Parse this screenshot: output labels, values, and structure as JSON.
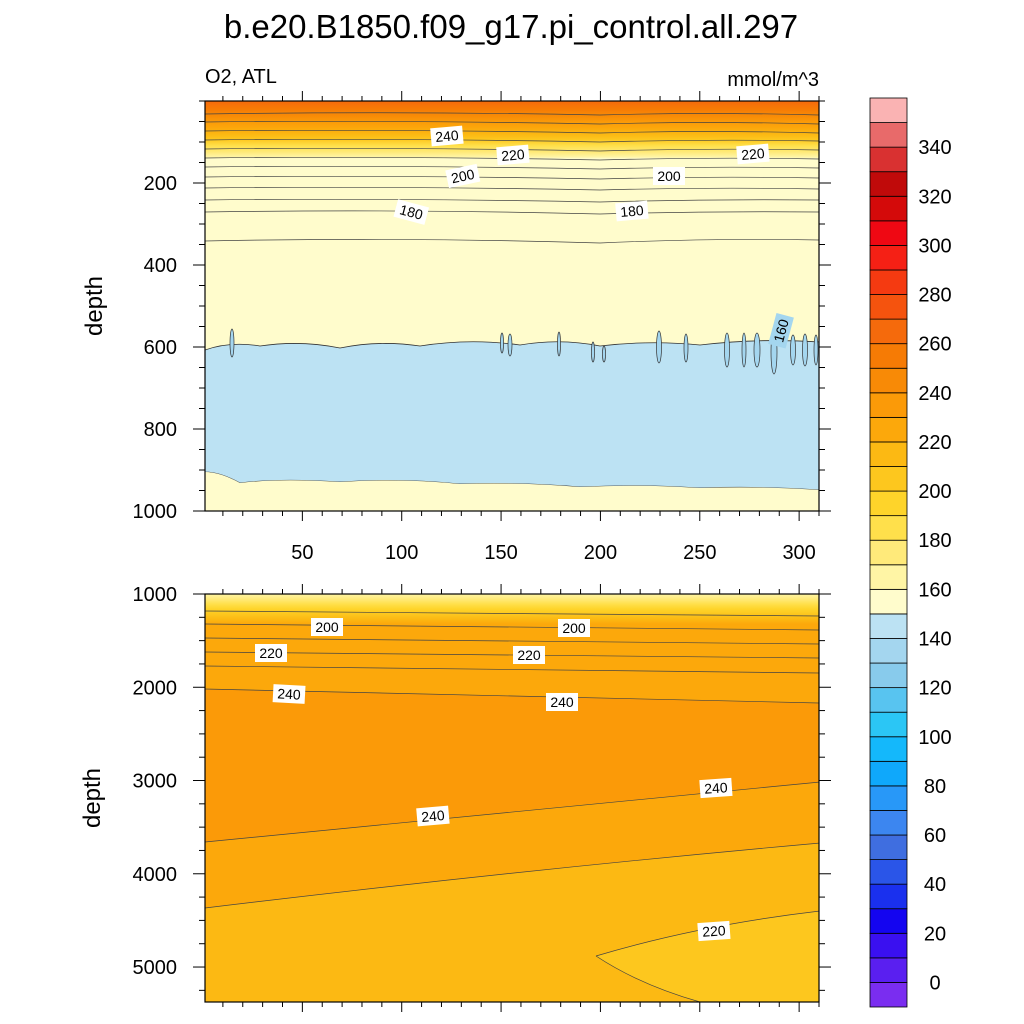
{
  "chart_data": {
    "type": "contour",
    "title": "b.e20.B1850.f09_g17.pi_control.all.297",
    "left_string": "O2, ATL",
    "right_string": "mmol/m^3",
    "ylabel": "depth",
    "x_ticks": [
      50,
      100,
      150,
      200,
      250,
      300
    ],
    "xlim": [
      1,
      310
    ],
    "colorbar": {
      "levels": [
        0,
        10,
        20,
        30,
        40,
        50,
        60,
        70,
        80,
        90,
        100,
        110,
        120,
        130,
        140,
        150,
        160,
        170,
        180,
        190,
        200,
        210,
        220,
        230,
        240,
        250,
        260,
        270,
        280,
        290,
        300,
        310,
        320,
        330,
        340,
        350
      ],
      "labels": [
        "0",
        "20",
        "40",
        "60",
        "80",
        "100",
        "120",
        "140",
        "160",
        "180",
        "200",
        "220",
        "240",
        "260",
        "280",
        "300",
        "320",
        "340"
      ],
      "colors": [
        "#7a2df0",
        "#5a1ff0",
        "#3a10f0",
        "#1405f0",
        "#1a30ee",
        "#2a55e8",
        "#3f6ee0",
        "#3c86f0",
        "#2898f8",
        "#0fa8fb",
        "#14b8fb",
        "#2bc6f5",
        "#58c4f0",
        "#88cbec",
        "#a4d6ef",
        "#bce2f3",
        "#fffccc",
        "#fff5a5",
        "#ffea7a",
        "#ffe04b",
        "#fed42a",
        "#fdc71e",
        "#fcb913",
        "#fca80b",
        "#fb9a08",
        "#f88a06",
        "#f67b05",
        "#f56a0c",
        "#f5530e",
        "#f53a11",
        "#f52015",
        "#ef0813",
        "#d40a0a",
        "#c00a0a",
        "#d93131",
        "#e86a6a",
        "#fab3b3"
      ]
    },
    "panels": [
      {
        "ylim": [
          0,
          1000
        ],
        "y_ticks": [
          200,
          400,
          600,
          800,
          1000
        ],
        "contour_labels": [
          "240",
          "220",
          "220",
          "200",
          "200",
          "180",
          "180",
          "160"
        ]
      },
      {
        "ylim": [
          1000,
          5375
        ],
        "y_ticks": [
          1000,
          2000,
          3000,
          4000,
          5000
        ],
        "contour_labels": [
          "200",
          "200",
          "220",
          "220",
          "240",
          "240",
          "240",
          "240",
          "220"
        ]
      }
    ]
  }
}
